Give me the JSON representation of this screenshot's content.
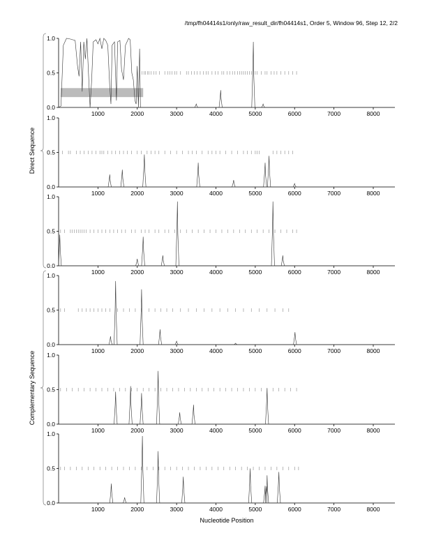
{
  "chart_data": {
    "type": "line",
    "title": "/tmp/fh04414s1/only/raw_result_dir/fh04414s1, Order 5, Window 96, Step 12, 2/2",
    "xlabel": "Nucleotide Position",
    "xlim": [
      0,
      8550
    ],
    "ylim": [
      0,
      1
    ],
    "x_ticks": [
      1000,
      2000,
      3000,
      4000,
      5000,
      6000,
      7000,
      8000
    ],
    "y_ticks": [
      "0.0",
      "0.5",
      "1.0"
    ],
    "groups": [
      {
        "label": "Direct Sequence",
        "panels": [
          0,
          1,
          2
        ]
      },
      {
        "label": "Complementary Sequence",
        "panels": [
          3,
          4,
          5
        ]
      }
    ],
    "panels": [
      {
        "name": "direct-frame-1",
        "curve": [
          [
            0,
            0
          ],
          [
            60,
            0.02
          ],
          [
            120,
            0.9
          ],
          [
            200,
            1
          ],
          [
            300,
            0.99
          ],
          [
            420,
            0.97
          ],
          [
            480,
            0.6
          ],
          [
            520,
            0.45
          ],
          [
            560,
            0.95
          ],
          [
            600,
            0.23
          ],
          [
            640,
            0.95
          ],
          [
            680,
            0.7
          ],
          [
            720,
            1
          ],
          [
            760,
            0.5
          ],
          [
            800,
            0
          ],
          [
            840,
            0.4
          ],
          [
            880,
            0.95
          ],
          [
            950,
            0.98
          ],
          [
            1000,
            0.92
          ],
          [
            1050,
            1
          ],
          [
            1100,
            0.85
          ],
          [
            1150,
            1
          ],
          [
            1200,
            0.97
          ],
          [
            1250,
            0.9
          ],
          [
            1300,
            0.3
          ],
          [
            1330,
            0.05
          ],
          [
            1360,
            0.9
          ],
          [
            1420,
            0.95
          ],
          [
            1470,
            0.1
          ],
          [
            1500,
            0.95
          ],
          [
            1560,
            0.97
          ],
          [
            1600,
            0.55
          ],
          [
            1650,
            0.4
          ],
          [
            1700,
            0.9
          ],
          [
            1780,
            1
          ],
          [
            1820,
            0.98
          ],
          [
            1860,
            0.5
          ],
          [
            1900,
            0.4
          ],
          [
            1940,
            0.1
          ],
          [
            1970,
            0.05
          ],
          [
            2000,
            0.6
          ],
          [
            2030,
            0
          ],
          [
            2060,
            0.85
          ],
          [
            2080,
            0
          ],
          [
            2200,
            0
          ]
        ],
        "peaks": [
          [
            3500,
            0.05
          ],
          [
            4120,
            0.25
          ],
          [
            4950,
            0.95
          ],
          [
            5200,
            0.05
          ]
        ],
        "orf_ticks": [
          2120,
          2170,
          2210,
          2260,
          2300,
          2350,
          2420,
          2480,
          2560,
          2700,
          2780,
          2830,
          2880,
          2950,
          3000,
          3100,
          3250,
          3300,
          3380,
          3450,
          3520,
          3600,
          3680,
          3750,
          3800,
          3900,
          3980,
          4050,
          4150,
          4200,
          4280,
          4350,
          4420,
          4480,
          4550,
          4600,
          4650,
          4700,
          4750,
          4800,
          4850,
          4900,
          5000,
          5050,
          5150,
          5250,
          5300,
          5400,
          5480,
          5550,
          5650,
          5750,
          5850,
          5950,
          6050
        ],
        "highlight": [
          50,
          2150,
          0.15,
          0.28
        ]
      },
      {
        "name": "direct-frame-2",
        "peaks": [
          [
            1300,
            0.18
          ],
          [
            1620,
            0.25
          ],
          [
            2180,
            0.47
          ],
          [
            3550,
            0.35
          ],
          [
            4450,
            0.1
          ],
          [
            5250,
            0.35
          ],
          [
            5350,
            0.45
          ],
          [
            6000,
            0.05
          ]
        ],
        "orf_ticks": [
          100,
          250,
          300,
          450,
          550,
          650,
          750,
          850,
          950,
          1050,
          1100,
          1150,
          1250,
          1350,
          1450,
          1550,
          1650,
          1750,
          1850,
          2000,
          2100,
          2250,
          2350,
          2450,
          2550,
          2700,
          2850,
          3000,
          3150,
          3300,
          3400,
          3500,
          3650,
          3800,
          3900,
          4000,
          4100,
          4250,
          4400,
          4550,
          4700,
          4800,
          4900,
          5000,
          5050,
          5100,
          5450,
          5550,
          5650,
          5750,
          5850,
          5950
        ]
      },
      {
        "name": "direct-frame-3",
        "peaks": [
          [
            30,
            0.45
          ],
          [
            2000,
            0.1
          ],
          [
            2150,
            0.42
          ],
          [
            2650,
            0.15
          ],
          [
            3020,
            0.93
          ],
          [
            5450,
            0.93
          ],
          [
            5700,
            0.15
          ]
        ],
        "orf_ticks": [
          50,
          150,
          300,
          350,
          400,
          450,
          500,
          550,
          600,
          650,
          700,
          800,
          900,
          1000,
          1100,
          1200,
          1300,
          1400,
          1500,
          1600,
          1700,
          1850,
          1950,
          2100,
          2200,
          2300,
          2450,
          2550,
          2700,
          2800,
          2950,
          3100,
          3250,
          3400,
          3550,
          3700,
          3850,
          4000,
          4150,
          4300,
          4450,
          4600,
          4750,
          4900,
          5050,
          5200,
          5350,
          5500,
          5650,
          5800,
          5950,
          6050
        ]
      },
      {
        "name": "complementary-frame-1",
        "peaks": [
          [
            1320,
            0.12
          ],
          [
            1450,
            0.92
          ],
          [
            2110,
            0.8
          ],
          [
            2580,
            0.22
          ],
          [
            3000,
            0.05
          ],
          [
            4500,
            0.02
          ],
          [
            6010,
            0.18
          ]
        ],
        "orf_ticks": [
          50,
          150,
          500,
          600,
          700,
          800,
          900,
          1000,
          1100,
          1200,
          1300,
          1500,
          1650,
          1800,
          1950,
          2100,
          2300,
          2450,
          2600,
          2750,
          2900,
          3100,
          3300,
          3500,
          3700,
          3900,
          4100,
          4300,
          4500,
          4700,
          4900,
          5100,
          5300,
          5500,
          5700,
          5850
        ]
      },
      {
        "name": "complementary-frame-2",
        "peaks": [
          [
            1450,
            0.47
          ],
          [
            1830,
            0.55
          ],
          [
            2110,
            0.45
          ],
          [
            2530,
            0.77
          ],
          [
            3080,
            0.17
          ],
          [
            3430,
            0.28
          ],
          [
            5300,
            0.52
          ]
        ],
        "orf_ticks": [
          50,
          200,
          350,
          500,
          650,
          800,
          950,
          1100,
          1250,
          1400,
          1550,
          1700,
          1850,
          2000,
          2150,
          2300,
          2450,
          2600,
          2750,
          2900,
          3050,
          3200,
          3350,
          3500,
          3650,
          3800,
          3950,
          4100,
          4250,
          4400,
          4550,
          4700,
          4850,
          5000,
          5150,
          5300,
          5450,
          5600,
          5750,
          5900,
          6050
        ]
      },
      {
        "name": "complementary-frame-3",
        "peaks": [
          [
            1340,
            0.28
          ],
          [
            1680,
            0.08
          ],
          [
            2130,
            0.97
          ],
          [
            2530,
            0.75
          ],
          [
            3170,
            0.38
          ],
          [
            4870,
            0.5
          ],
          [
            5250,
            0.25
          ],
          [
            5300,
            0.4
          ],
          [
            5600,
            0.45
          ]
        ],
        "orf_ticks": [
          50,
          150,
          300,
          450,
          600,
          750,
          900,
          1050,
          1200,
          1350,
          1500,
          1650,
          1800,
          1950,
          2100,
          2250,
          2400,
          2550,
          2700,
          2850,
          3000,
          3150,
          3300,
          3450,
          3600,
          3750,
          3900,
          4050,
          4200,
          4350,
          4500,
          4650,
          4800,
          4950,
          5100,
          5250,
          5400,
          5550,
          5700,
          5850,
          6000,
          6100
        ]
      }
    ]
  }
}
